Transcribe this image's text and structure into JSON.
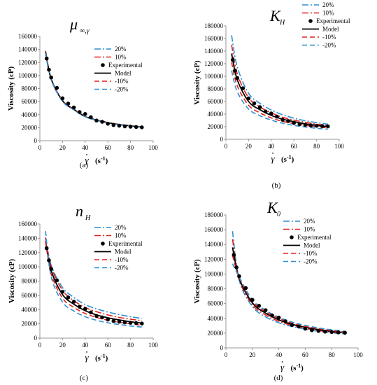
{
  "figure": {
    "x_axis_unit": "(s",
    "x_axis_superscript": "-1",
    "x_axis_close": ")",
    "x_axis_symbol": "γ",
    "x_axis_dot": "•"
  },
  "chart_data": [
    {
      "type": "line",
      "panel": "(a)",
      "title": {
        "main": "μ",
        "sub": "∞,γ"
      },
      "ylabel": "Viscosity (cP)",
      "xlim": [
        0,
        100
      ],
      "ylim": [
        0,
        160000
      ],
      "xticks": [
        0,
        20,
        40,
        60,
        80,
        100
      ],
      "yticks": [
        0,
        20000,
        40000,
        60000,
        80000,
        100000,
        120000,
        140000,
        160000
      ],
      "legend": [
        "20%",
        "10%",
        "Experimental",
        "Model",
        "-10%",
        "-20%"
      ],
      "experimental": {
        "name": "Experimental",
        "x": [
          6,
          8,
          10,
          15,
          20,
          25,
          30,
          35,
          40,
          45,
          50,
          55,
          60,
          65,
          70,
          75,
          80,
          85,
          90
        ],
        "y": [
          126000,
          109000,
          97000,
          81000,
          65000,
          57000,
          51000,
          44000,
          41000,
          36000,
          31000,
          29000,
          26000,
          24000,
          23000,
          22000,
          21500,
          21000,
          20500
        ]
      },
      "series": [
        {
          "name": "20%",
          "color": "#2f8fd1",
          "dash": "9 3 2 3",
          "x": [
            5,
            10,
            20,
            30,
            40,
            50,
            60,
            70,
            80,
            90
          ],
          "y": [
            138000,
            95500,
            62000,
            48500,
            37500,
            32000,
            28000,
            25000,
            23000,
            21000
          ]
        },
        {
          "name": "10%",
          "color": "#e0201c",
          "dash": "9 3 2 3",
          "x": [
            5,
            10,
            20,
            30,
            40,
            50,
            60,
            70,
            80,
            90
          ],
          "y": [
            137000,
            95000,
            61600,
            48200,
            37300,
            31800,
            27900,
            24900,
            22900,
            20900
          ]
        },
        {
          "name": "Model",
          "color": "#000000",
          "dash": "",
          "x": [
            5,
            10,
            20,
            30,
            40,
            50,
            60,
            70,
            80,
            90
          ],
          "y": [
            136000,
            94500,
            61200,
            47900,
            37100,
            31600,
            27700,
            24800,
            22800,
            20800
          ]
        },
        {
          "name": "-10%",
          "color": "#e0201c",
          "dash": "7 4",
          "x": [
            5,
            10,
            20,
            30,
            40,
            50,
            60,
            70,
            80,
            90
          ],
          "y": [
            135000,
            94000,
            60800,
            47600,
            36900,
            31400,
            27500,
            24600,
            22600,
            20600
          ]
        },
        {
          "name": "-20%",
          "color": "#2f8fd1",
          "dash": "7 4",
          "x": [
            5,
            10,
            20,
            30,
            40,
            50,
            60,
            70,
            80,
            90
          ],
          "y": [
            134000,
            93500,
            60400,
            47300,
            36700,
            31200,
            27300,
            24400,
            22400,
            20400
          ]
        }
      ]
    },
    {
      "type": "line",
      "panel": "(b)",
      "title": {
        "main": "K",
        "sub": "H"
      },
      "ylabel": "Viscosity (cP)",
      "xlim": [
        0,
        100
      ],
      "ylim": [
        0,
        180000
      ],
      "xticks": [
        0,
        20,
        40,
        60,
        80,
        100
      ],
      "yticks": [
        0,
        20000,
        40000,
        60000,
        80000,
        100000,
        120000,
        140000,
        160000,
        180000
      ],
      "legend": [
        "20%",
        "10%",
        "Experimental",
        "Model",
        "-10%",
        "-20%"
      ],
      "experimental": {
        "name": "Experimental",
        "x": [
          6,
          8,
          10,
          15,
          20,
          25,
          30,
          35,
          40,
          45,
          50,
          55,
          60,
          65,
          70,
          75,
          80,
          85,
          90
        ],
        "y": [
          126000,
          109000,
          97000,
          81000,
          65000,
          57000,
          51000,
          44000,
          41000,
          36000,
          31000,
          29000,
          26000,
          24000,
          23000,
          22000,
          21500,
          21000,
          20500
        ]
      },
      "series": [
        {
          "name": "20%",
          "color": "#2f8fd1",
          "dash": "9 3 2 3",
          "x": [
            5,
            10,
            20,
            30,
            40,
            50,
            60,
            70,
            80,
            90
          ],
          "y": [
            165000,
            115000,
            73000,
            57000,
            46500,
            39000,
            33500,
            29500,
            26500,
            24000
          ]
        },
        {
          "name": "10%",
          "color": "#e0201c",
          "dash": "9 3 2 3",
          "x": [
            5,
            10,
            20,
            30,
            40,
            50,
            60,
            70,
            80,
            90
          ],
          "y": [
            150000,
            104000,
            66000,
            51500,
            42000,
            35000,
            30500,
            27000,
            24000,
            22000
          ]
        },
        {
          "name": "Model",
          "color": "#000000",
          "dash": "",
          "x": [
            5,
            10,
            20,
            30,
            40,
            50,
            60,
            70,
            80,
            90
          ],
          "y": [
            136000,
            94500,
            60000,
            47000,
            38000,
            32000,
            28000,
            24500,
            22000,
            20000
          ]
        },
        {
          "name": "-10%",
          "color": "#e0201c",
          "dash": "7 4",
          "x": [
            5,
            10,
            20,
            30,
            40,
            50,
            60,
            70,
            80,
            90
          ],
          "y": [
            122000,
            85000,
            54000,
            42000,
            34000,
            28500,
            25000,
            22000,
            20000,
            18000
          ]
        },
        {
          "name": "-20%",
          "color": "#2f8fd1",
          "dash": "7 4",
          "x": [
            5,
            10,
            20,
            30,
            40,
            50,
            60,
            70,
            80,
            90
          ],
          "y": [
            109000,
            75500,
            48000,
            37500,
            30500,
            25500,
            22000,
            19500,
            17500,
            16000
          ]
        }
      ]
    },
    {
      "type": "line",
      "panel": "(c)",
      "title": {
        "main": "n",
        "sub": "H"
      },
      "ylabel": "Viscosity (cP)",
      "xlim": [
        0,
        100
      ],
      "ylim": [
        0,
        160000
      ],
      "xticks": [
        0,
        20,
        40,
        60,
        80,
        100
      ],
      "yticks": [
        0,
        20000,
        40000,
        60000,
        80000,
        100000,
        120000,
        140000,
        160000
      ],
      "legend": [
        "20%",
        "10%",
        "Experimental",
        "Model",
        "-10%",
        "-20%"
      ],
      "experimental": {
        "name": "Experimental",
        "x": [
          6,
          8,
          10,
          15,
          20,
          25,
          30,
          35,
          40,
          45,
          50,
          55,
          60,
          65,
          70,
          75,
          80,
          85,
          90
        ],
        "y": [
          126000,
          109000,
          97000,
          81000,
          65000,
          57000,
          51000,
          44000,
          41000,
          36000,
          31000,
          29000,
          26000,
          24000,
          23000,
          22000,
          21500,
          21000,
          20500
        ]
      },
      "series": [
        {
          "name": "20%",
          "color": "#2f8fd1",
          "dash": "9 3 2 3",
          "x": [
            5,
            10,
            20,
            30,
            40,
            50,
            60,
            70,
            80,
            90
          ],
          "y": [
            140000,
            102000,
            71000,
            57000,
            47000,
            41000,
            36500,
            33000,
            30000,
            27500
          ]
        },
        {
          "name": "10%",
          "color": "#e0201c",
          "dash": "9 3 2 3",
          "x": [
            5,
            10,
            20,
            30,
            40,
            50,
            60,
            70,
            80,
            90
          ],
          "y": [
            141000,
            100000,
            67000,
            52500,
            43000,
            37000,
            32500,
            29000,
            26500,
            24500
          ]
        },
        {
          "name": "Model",
          "color": "#000000",
          "dash": "",
          "x": [
            5,
            10,
            20,
            30,
            40,
            50,
            60,
            70,
            80,
            90
          ],
          "y": [
            136000,
            94500,
            61000,
            47500,
            38500,
            32500,
            28500,
            25500,
            23000,
            21000
          ]
        },
        {
          "name": "-10%",
          "color": "#e0201c",
          "dash": "7 4",
          "x": [
            5,
            10,
            20,
            30,
            40,
            50,
            60,
            70,
            80,
            90
          ],
          "y": [
            136000,
            90000,
            56000,
            43000,
            34500,
            29000,
            25000,
            22000,
            20000,
            18000
          ]
        },
        {
          "name": "-20%",
          "color": "#2f8fd1",
          "dash": "7 4",
          "x": [
            5,
            10,
            20,
            30,
            40,
            50,
            60,
            70,
            80,
            90
          ],
          "y": [
            150000,
            86000,
            50500,
            38000,
            30000,
            25000,
            21500,
            19000,
            17000,
            15500
          ]
        }
      ]
    },
    {
      "type": "line",
      "panel": "(d)",
      "title": {
        "main": "K",
        "sub": "0"
      },
      "ylabel": "Viscosity (cP)",
      "xlim": [
        0,
        100
      ],
      "ylim": [
        0,
        180000
      ],
      "xticks": [
        0,
        20,
        40,
        60,
        80,
        100
      ],
      "yticks": [
        0,
        20000,
        40000,
        60000,
        80000,
        100000,
        120000,
        140000,
        160000,
        180000
      ],
      "legend": [
        "20%",
        "10%",
        "Experimental",
        "Model",
        "-10%",
        "-20%"
      ],
      "experimental": {
        "name": "Experimental",
        "x": [
          6,
          8,
          10,
          15,
          20,
          25,
          30,
          35,
          40,
          45,
          50,
          55,
          60,
          65,
          70,
          75,
          80,
          85,
          90
        ],
        "y": [
          126000,
          109000,
          97000,
          81000,
          65000,
          57000,
          51000,
          44000,
          41000,
          36000,
          31000,
          29000,
          26000,
          24000,
          23000,
          22000,
          21500,
          21000,
          20500
        ]
      },
      "series": [
        {
          "name": "20%",
          "color": "#2f8fd1",
          "dash": "9 3 2 3",
          "x": [
            5,
            10,
            20,
            30,
            40,
            50,
            60,
            70,
            80,
            90
          ],
          "y": [
            158000,
            92000,
            56000,
            42000,
            34000,
            29000,
            25500,
            22500,
            20500,
            19000
          ]
        },
        {
          "name": "10%",
          "color": "#e0201c",
          "dash": "9 3 2 3",
          "x": [
            5,
            10,
            20,
            30,
            40,
            50,
            60,
            70,
            80,
            90
          ],
          "y": [
            147000,
            93000,
            58500,
            44500,
            36000,
            30500,
            26500,
            23500,
            21500,
            20000
          ]
        },
        {
          "name": "Model",
          "color": "#000000",
          "dash": "",
          "x": [
            5,
            10,
            20,
            30,
            40,
            50,
            60,
            70,
            80,
            90
          ],
          "y": [
            136000,
            94500,
            61000,
            47000,
            38000,
            32000,
            28000,
            24800,
            22500,
            20800
          ]
        },
        {
          "name": "-10%",
          "color": "#e0201c",
          "dash": "7 4",
          "x": [
            5,
            10,
            20,
            30,
            40,
            50,
            60,
            70,
            80,
            90
          ],
          "y": [
            125000,
            95500,
            63000,
            49000,
            40000,
            33500,
            29000,
            26000,
            23500,
            21500
          ]
        },
        {
          "name": "-20%",
          "color": "#2f8fd1",
          "dash": "7 4",
          "x": [
            5,
            10,
            20,
            30,
            40,
            50,
            60,
            70,
            80,
            90
          ],
          "y": [
            114000,
            96000,
            65000,
            51000,
            41500,
            35000,
            30500,
            27000,
            24500,
            22500
          ]
        }
      ]
    }
  ]
}
